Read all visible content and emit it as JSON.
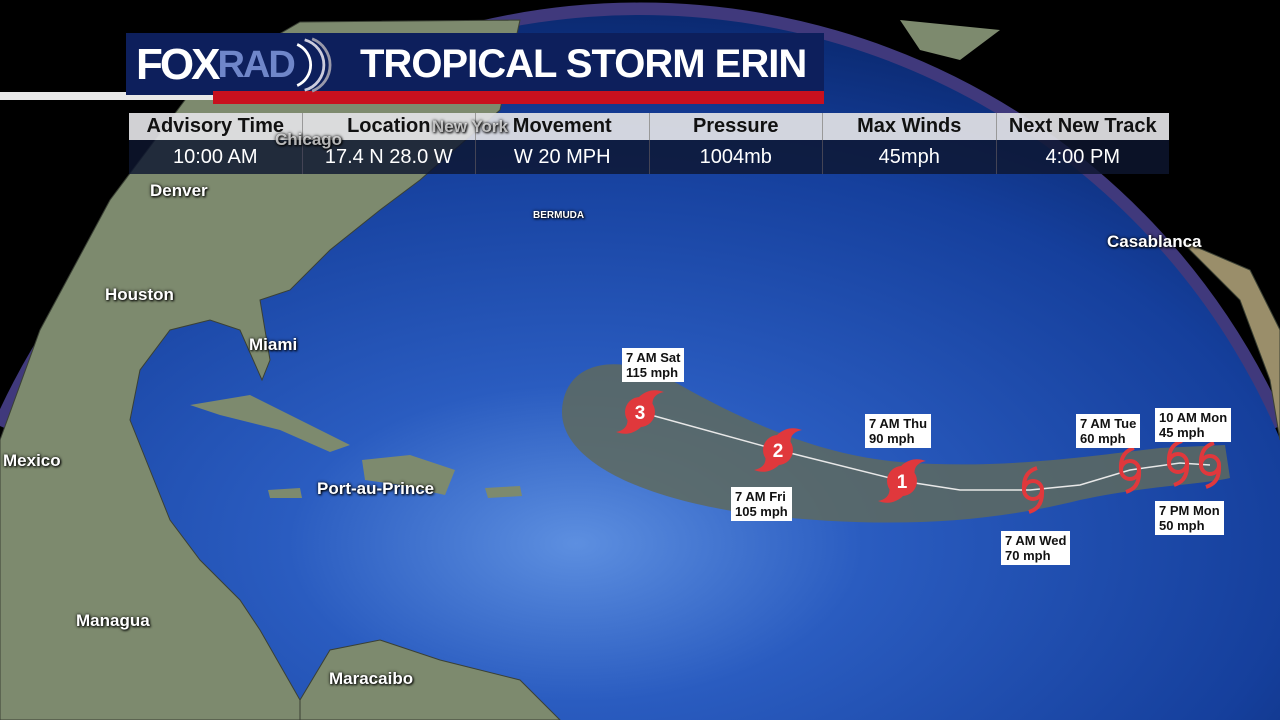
{
  "header": {
    "logo_text_1": "FOX",
    "logo_text_2": "RAD",
    "title": "TROPICAL STORM ERIN"
  },
  "advisory_table": {
    "columns": [
      "Advisory Time",
      "Location",
      "Movement",
      "Pressure",
      "Max Winds",
      "Next New Track"
    ],
    "values": [
      "10:00 AM",
      "17.4 N 28.0 W",
      "W 20 MPH",
      "1004mb",
      "45mph",
      "4:00 PM"
    ]
  },
  "cities": [
    "Chicago",
    "New York",
    "Denver",
    "Houston",
    "Miami",
    "Mexico",
    "Port-au-Prince",
    "Managua",
    "Maracaibo",
    "Casablanca",
    "BERMUDA"
  ],
  "track_points": [
    {
      "time": "10 AM Mon",
      "wind": "45 mph",
      "category": "TS"
    },
    {
      "time": "7 PM Mon",
      "wind": "50 mph",
      "category": "TS"
    },
    {
      "time": "7 AM Tue",
      "wind": "60 mph",
      "category": "TS"
    },
    {
      "time": "7 AM Wed",
      "wind": "70 mph",
      "category": "TS"
    },
    {
      "time": "7 AM Thu",
      "wind": "90 mph",
      "category": "1"
    },
    {
      "time": "7 AM Fri",
      "wind": "105 mph",
      "category": "2"
    },
    {
      "time": "7 AM Sat",
      "wind": "115 mph",
      "category": "3"
    }
  ],
  "colors": {
    "header_bg": "#0d1f5c",
    "accent_red": "#c8101e",
    "ocean": "#1a49a8",
    "cone": "#5e6a5e",
    "hurricane_marker": "#e0383c"
  }
}
